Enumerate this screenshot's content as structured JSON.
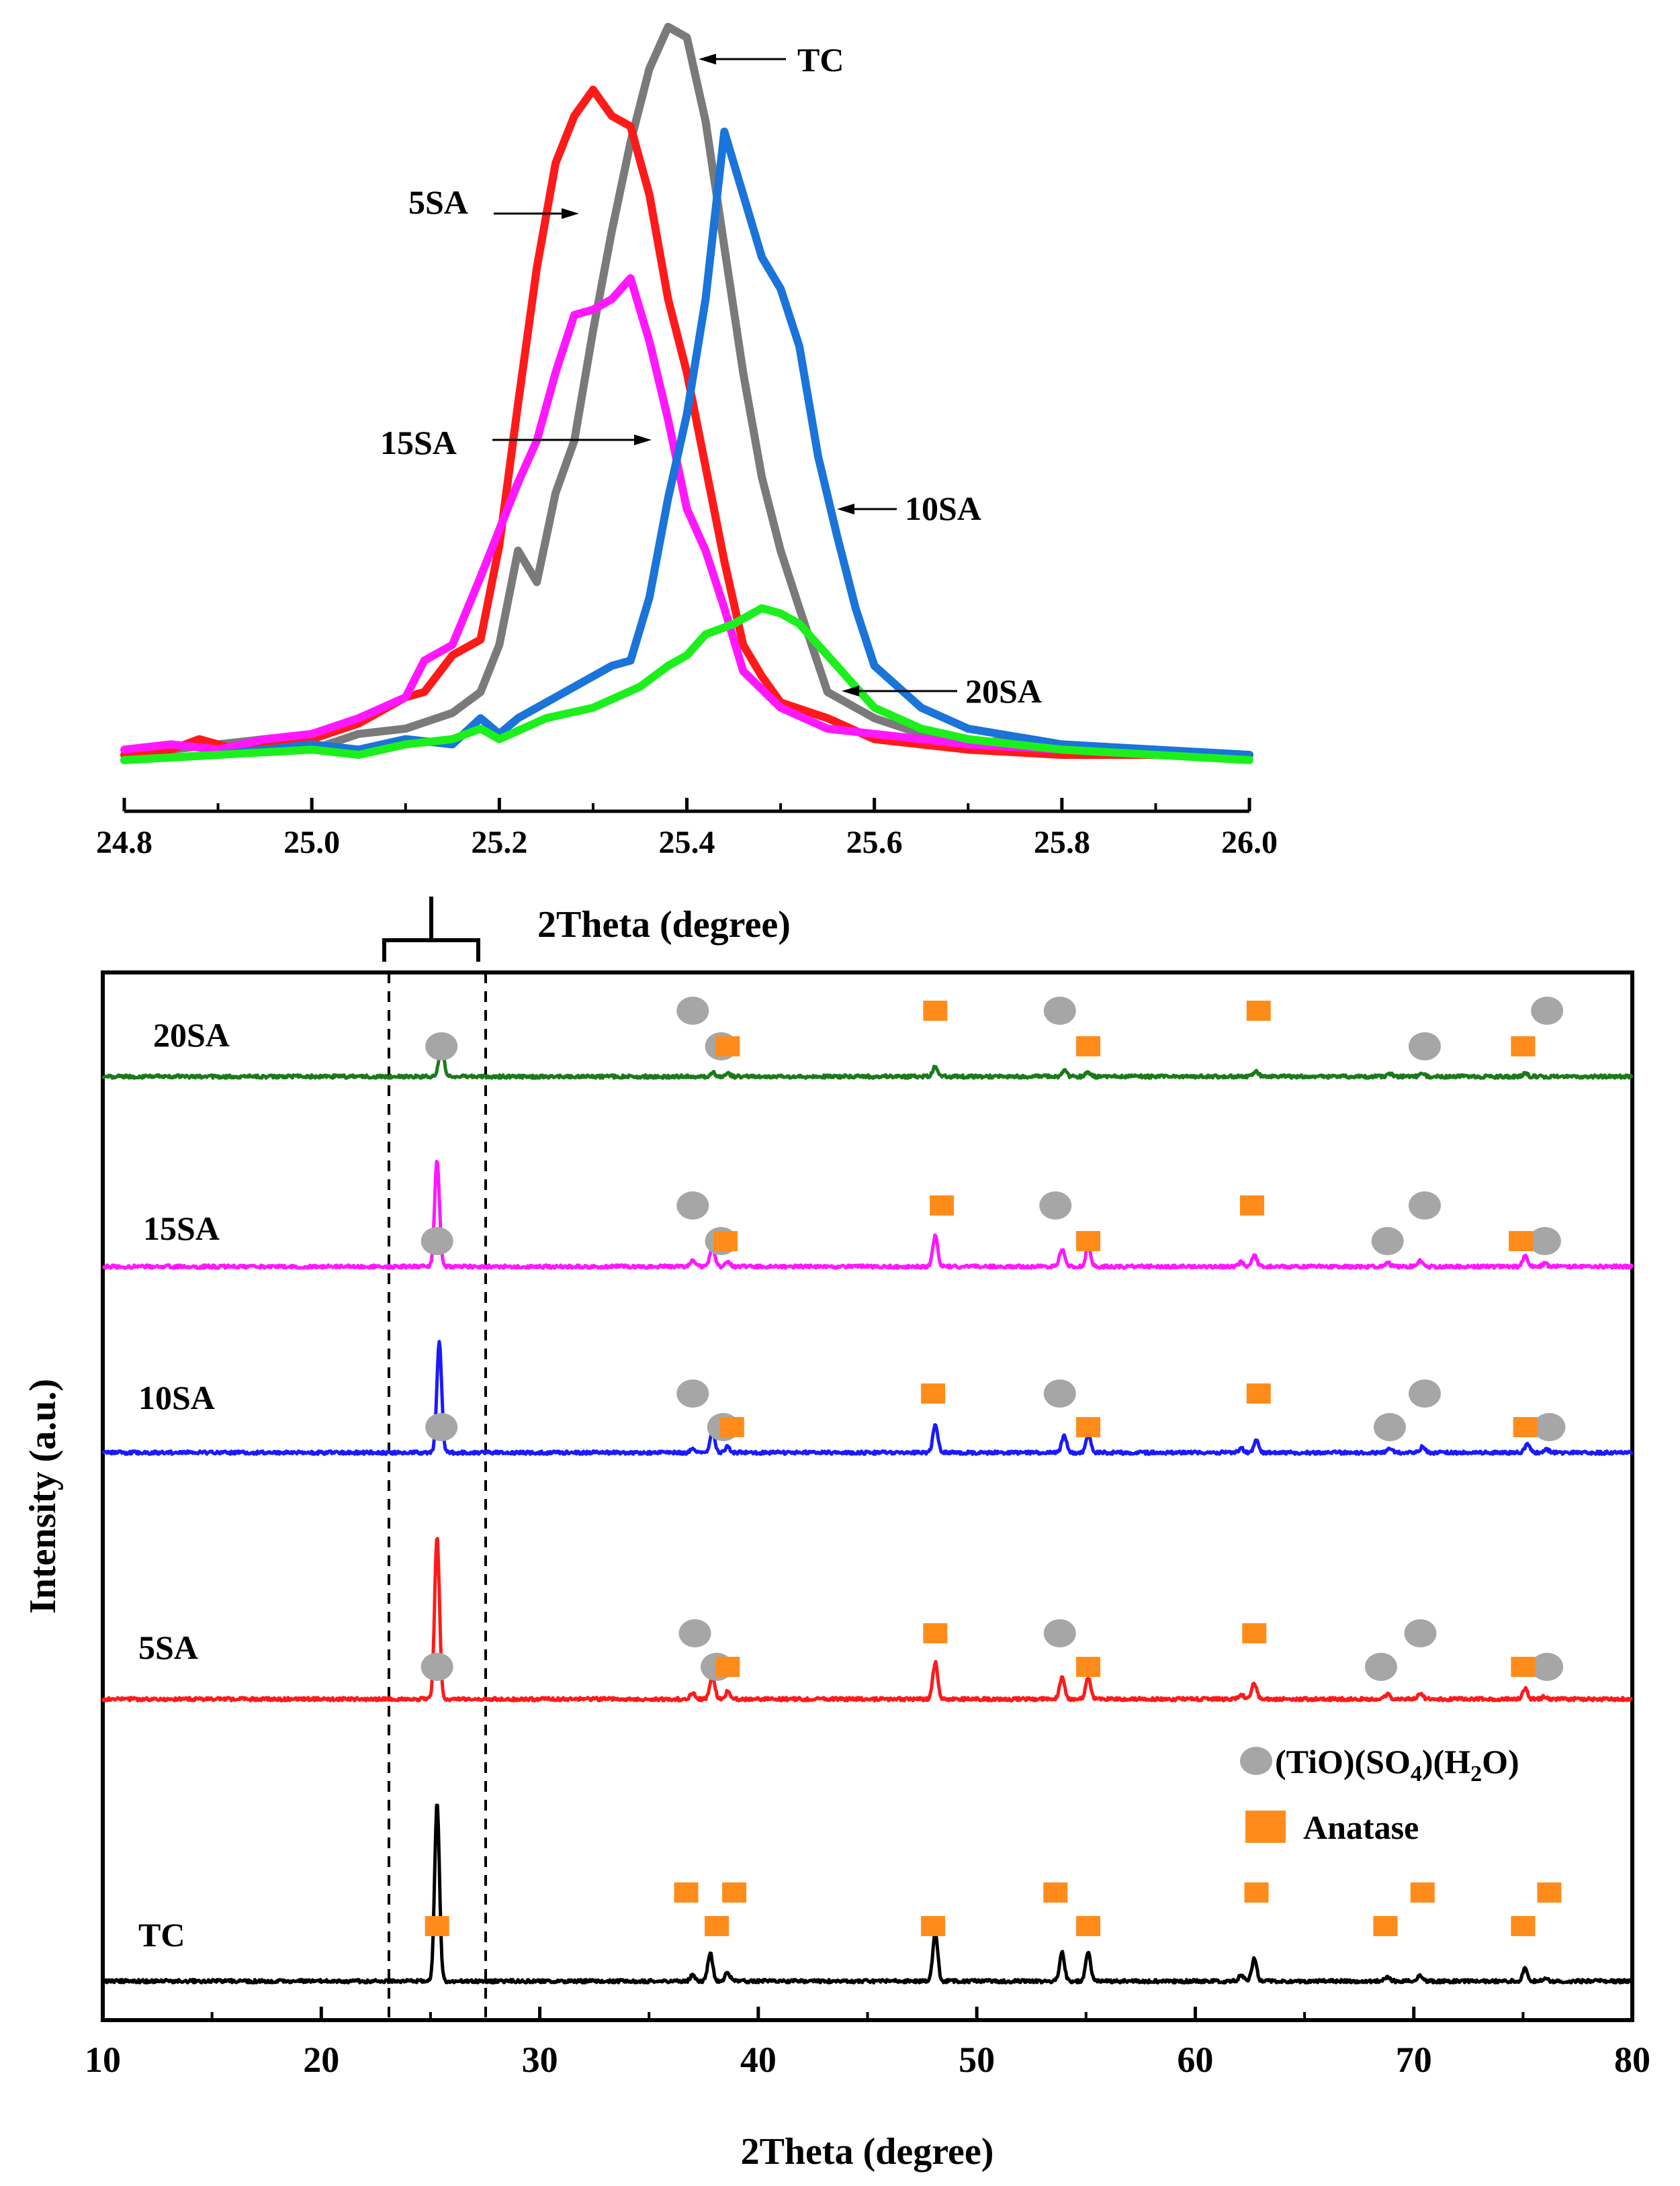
{
  "chart_data": [
    {
      "type": "line",
      "role": "inset",
      "title": "",
      "xlabel": "2Theta (degree)",
      "ylabel": "",
      "xlim": [
        24.8,
        26.0
      ],
      "x_ticks": [
        "24.8",
        "25.0",
        "25.2",
        "25.4",
        "25.6",
        "25.8",
        "26.0"
      ],
      "series": [
        {
          "name": "TC",
          "color": "#7a7a7a",
          "x": [
            24.8,
            24.85,
            24.9,
            24.95,
            25.0,
            25.05,
            25.1,
            25.15,
            25.18,
            25.2,
            25.22,
            25.24,
            25.26,
            25.28,
            25.3,
            25.32,
            25.34,
            25.36,
            25.38,
            25.4,
            25.42,
            25.44,
            25.46,
            25.48,
            25.5,
            25.52,
            25.55,
            25.6,
            25.65,
            25.7,
            25.75,
            25.8,
            25.9,
            26.0
          ],
          "y": [
            4,
            6,
            7,
            8,
            6,
            9,
            10,
            13,
            17,
            26,
            44,
            38,
            55,
            65,
            86,
            105,
            122,
            136,
            144,
            142,
            126,
            102,
            78,
            58,
            44,
            33,
            17,
            12,
            9,
            7,
            8,
            6,
            5,
            5
          ]
        },
        {
          "name": "5SA",
          "color": "#ff1a1a",
          "x": [
            24.8,
            24.85,
            24.88,
            24.92,
            24.95,
            25.0,
            25.05,
            25.1,
            25.12,
            25.15,
            25.18,
            25.2,
            25.22,
            25.24,
            25.26,
            25.28,
            25.3,
            25.32,
            25.34,
            25.36,
            25.38,
            25.4,
            25.42,
            25.44,
            25.46,
            25.48,
            25.5,
            25.55,
            25.6,
            25.7,
            25.8,
            25.9,
            26.0
          ],
          "y": [
            5,
            6,
            8,
            6,
            7,
            8,
            11,
            16,
            17,
            24,
            27,
            45,
            72,
            98,
            118,
            127,
            132,
            127,
            125,
            112,
            92,
            78,
            60,
            42,
            26,
            20,
            15,
            12,
            8,
            6,
            5,
            5,
            5
          ]
        },
        {
          "name": "15SA",
          "color": "#ff17ff",
          "x": [
            24.8,
            24.85,
            24.9,
            24.95,
            25.0,
            25.05,
            25.1,
            25.12,
            25.15,
            25.18,
            25.2,
            25.22,
            25.24,
            25.26,
            25.28,
            25.3,
            25.32,
            25.34,
            25.36,
            25.38,
            25.4,
            25.42,
            25.44,
            25.46,
            25.5,
            25.55,
            25.6,
            25.7,
            25.8,
            25.9
          ],
          "y": [
            6,
            7,
            6,
            8,
            9,
            12,
            16,
            23,
            26,
            39,
            48,
            57,
            65,
            78,
            89,
            90,
            92,
            96,
            84,
            69,
            52,
            44,
            33,
            21,
            14,
            10,
            9,
            7,
            6,
            6
          ]
        },
        {
          "name": "10SA",
          "color": "#1a74d9",
          "x": [
            24.8,
            24.9,
            25.0,
            25.05,
            25.1,
            25.15,
            25.18,
            25.2,
            25.22,
            25.25,
            25.28,
            25.3,
            25.32,
            25.34,
            25.36,
            25.38,
            25.4,
            25.42,
            25.44,
            25.46,
            25.48,
            25.5,
            25.52,
            25.54,
            25.56,
            25.58,
            25.6,
            25.65,
            25.7,
            25.8,
            25.9,
            26.0
          ],
          "y": [
            4,
            5,
            7,
            6,
            8,
            7,
            12,
            9,
            12,
            15,
            18,
            20,
            22,
            23,
            35,
            54,
            70,
            92,
            124,
            112,
            100,
            94,
            83,
            62,
            47,
            33,
            22,
            14,
            10,
            7,
            6,
            5
          ]
        },
        {
          "name": "20SA",
          "color": "#1cf01c",
          "x": [
            24.8,
            24.9,
            25.0,
            25.05,
            25.1,
            25.15,
            25.18,
            25.2,
            25.25,
            25.3,
            25.35,
            25.38,
            25.4,
            25.42,
            25.45,
            25.48,
            25.5,
            25.52,
            25.54,
            25.56,
            25.58,
            25.6,
            25.65,
            25.7,
            25.8,
            25.9,
            26.0
          ],
          "y": [
            4,
            5,
            6,
            5,
            7,
            8,
            10,
            8,
            12,
            14,
            18,
            22,
            24,
            28,
            30,
            33,
            32,
            30,
            26,
            22,
            18,
            14,
            10,
            8,
            6,
            5,
            4
          ]
        }
      ],
      "annotations": [
        "TC",
        "5SA",
        "15SA",
        "10SA",
        "20SA"
      ]
    },
    {
      "type": "line",
      "role": "main",
      "title": "",
      "xlabel": "2Theta (degree)",
      "ylabel": "Intensity (a.u.)",
      "xlim": [
        10,
        80
      ],
      "x_ticks": [
        "10",
        "20",
        "30",
        "40",
        "50",
        "60",
        "70",
        "80"
      ],
      "bracket_range": [
        23.0,
        27.5
      ],
      "series": [
        {
          "name": "20SA",
          "color": "#1a7a1a",
          "peaks": [
            [
              25.5,
              22
            ],
            [
              37.9,
              3
            ],
            [
              38.6,
              2
            ],
            [
              48.1,
              7
            ],
            [
              54.0,
              4
            ],
            [
              55.1,
              3
            ],
            [
              62.8,
              3
            ],
            [
              68.9,
              2
            ],
            [
              70.4,
              2
            ],
            [
              75.1,
              2
            ]
          ]
        },
        {
          "name": "15SA",
          "color": "#ff17ff",
          "peaks": [
            [
              25.3,
              72
            ],
            [
              37.0,
              4
            ],
            [
              37.9,
              14
            ],
            [
              38.6,
              4
            ],
            [
              48.1,
              21
            ],
            [
              53.9,
              12
            ],
            [
              55.1,
              14
            ],
            [
              62.1,
              3
            ],
            [
              62.7,
              8
            ],
            [
              68.8,
              3
            ],
            [
              70.3,
              4
            ],
            [
              75.1,
              7
            ],
            [
              76.0,
              2
            ]
          ]
        },
        {
          "name": "10SA",
          "color": "#1a1aff",
          "peaks": [
            [
              25.4,
              75
            ],
            [
              37.0,
              3
            ],
            [
              37.9,
              14
            ],
            [
              38.6,
              4
            ],
            [
              48.1,
              19
            ],
            [
              54.0,
              12
            ],
            [
              55.1,
              12
            ],
            [
              62.1,
              3
            ],
            [
              62.8,
              8
            ],
            [
              68.9,
              3
            ],
            [
              70.4,
              4
            ],
            [
              75.2,
              6
            ],
            [
              76.1,
              2
            ]
          ]
        },
        {
          "name": "5SA",
          "color": "#ff1a1a",
          "peaks": [
            [
              25.3,
              110
            ],
            [
              37.0,
              4
            ],
            [
              37.9,
              16
            ],
            [
              38.6,
              5
            ],
            [
              48.1,
              25
            ],
            [
              53.9,
              15
            ],
            [
              55.1,
              15
            ],
            [
              62.1,
              3
            ],
            [
              62.7,
              11
            ],
            [
              68.8,
              3
            ],
            [
              70.3,
              4
            ],
            [
              75.1,
              7
            ],
            [
              76.0,
              2
            ]
          ]
        },
        {
          "name": "TC",
          "color": "#000000",
          "peaks": [
            [
              25.3,
              120
            ],
            [
              37.0,
              4
            ],
            [
              37.8,
              19
            ],
            [
              38.6,
              6
            ],
            [
              48.1,
              34
            ],
            [
              53.9,
              20
            ],
            [
              55.1,
              20
            ],
            [
              62.1,
              4
            ],
            [
              62.7,
              15
            ],
            [
              68.8,
              3
            ],
            [
              70.3,
              4
            ],
            [
              75.1,
              9
            ],
            [
              76.0,
              2
            ]
          ]
        }
      ],
      "markers": {
        "20SA": {
          "circles": [
            25.5,
            37.0,
            38.3,
            53.8,
            70.5,
            76.1
          ],
          "squares": [
            38.6,
            48.1,
            55.1,
            62.9,
            75.0
          ]
        },
        "15SA": {
          "circles": [
            25.3,
            37.0,
            38.3,
            53.6,
            68.8,
            70.5,
            76.0
          ],
          "squares": [
            38.5,
            48.4,
            55.1,
            62.6,
            74.9
          ]
        },
        "10SA": {
          "circles": [
            25.5,
            37.0,
            38.4,
            53.8,
            68.9,
            70.5,
            76.2
          ],
          "squares": [
            38.8,
            48.0,
            55.1,
            62.9,
            75.1
          ]
        },
        "5SA": {
          "circles": [
            25.3,
            37.1,
            38.1,
            53.8,
            68.5,
            70.3,
            76.1
          ],
          "squares": [
            38.6,
            48.1,
            55.1,
            62.7,
            75.0
          ]
        },
        "TC": {
          "circles": [],
          "squares": [
            25.3,
            36.7,
            38.1,
            38.9,
            48.0,
            53.6,
            55.1,
            62.8,
            68.7,
            70.4,
            75.0,
            76.2
          ]
        }
      },
      "legend": [
        {
          "symbol": "circle",
          "label": "(TiO)(SO4)(H2O)"
        },
        {
          "symbol": "square",
          "label": "Anatase"
        }
      ]
    }
  ],
  "colors": {
    "circle_marker": "#a6a6a6",
    "square_marker": "#ff8c1a"
  },
  "legend_display": {
    "a": "(TiO)(SO",
    "sub1": "4",
    "b": ")(H",
    "sub2": "2",
    "c": "O)"
  }
}
